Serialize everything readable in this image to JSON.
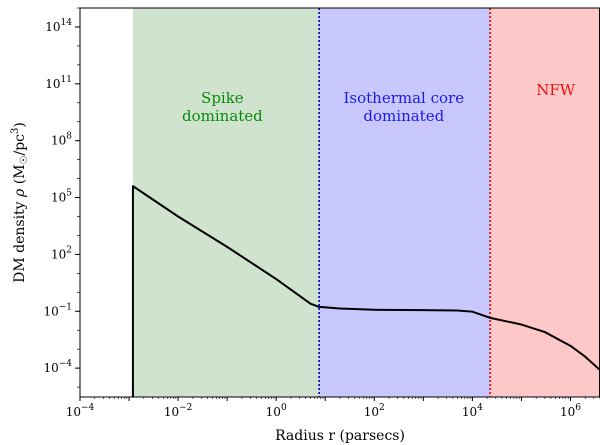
{
  "chart_data": {
    "type": "line",
    "xscale": "log",
    "yscale": "log",
    "xlim": [
      0.0001,
      4000000
    ],
    "ylim": [
      3e-06,
      1000000000000000
    ],
    "xlabel": "Radius r (parsecs)",
    "ylabel_prefix": "DM density ",
    "ylabel_rho": "ρ",
    "ylabel_units": "(M",
    "ylabel_sun": "☉",
    "ylabel_units_end": "/pc",
    "ylabel_exp": "3",
    "ylabel_close": ")",
    "xticks": [
      {
        "value": 0.0001,
        "base": "10",
        "exp": "−4"
      },
      {
        "value": 0.01,
        "base": "10",
        "exp": "−2"
      },
      {
        "value": 1,
        "base": "10",
        "exp": "0"
      },
      {
        "value": 100,
        "base": "10",
        "exp": "2"
      },
      {
        "value": 10000,
        "base": "10",
        "exp": "4"
      },
      {
        "value": 1000000,
        "base": "10",
        "exp": "6"
      }
    ],
    "yticks": [
      {
        "value": 0.0001,
        "base": "10",
        "exp": "−4"
      },
      {
        "value": 0.1,
        "base": "10",
        "exp": "−1"
      },
      {
        "value": 100,
        "base": "10",
        "exp": "2"
      },
      {
        "value": 100000,
        "base": "10",
        "exp": "5"
      },
      {
        "value": 100000000,
        "base": "10",
        "exp": "8"
      },
      {
        "value": 100000000000,
        "base": "10",
        "exp": "11"
      },
      {
        "value": 100000000000000,
        "base": "10",
        "exp": "14"
      }
    ],
    "regions": [
      {
        "x0": 0.0012,
        "x1": 7.5,
        "color": "#cfe3cf",
        "label": [
          "Spike",
          "dominated"
        ],
        "label_color": "#0a8a0a",
        "label_x": 0.08,
        "label_y": 10000000000
      },
      {
        "x0": 7.5,
        "x1": 23000,
        "color": "#c8c8ff",
        "label": [
          "Isothermal core",
          "dominated"
        ],
        "label_color": "#1a1aee",
        "label_x": 400,
        "label_y": 10000000000
      },
      {
        "x0": 23000,
        "x1": 4000000,
        "color": "#ffc8c8",
        "label": [
          "NFW"
        ],
        "label_color": "#ee1111",
        "label_x": 500000,
        "label_y": 25000000000
      }
    ],
    "boundaries": [
      {
        "x": 7.5,
        "color": "#0000cc"
      },
      {
        "x": 23000,
        "color": "#dd0000"
      }
    ],
    "series": [
      {
        "color": "#000000",
        "points": [
          [
            0.0012,
            3e-06
          ],
          [
            0.0012,
            400000
          ],
          [
            0.01,
            10000
          ],
          [
            0.1,
            250
          ],
          [
            1,
            5
          ],
          [
            5,
            0.25
          ],
          [
            7.5,
            0.17
          ],
          [
            20,
            0.14
          ],
          [
            100,
            0.12
          ],
          [
            1000,
            0.115
          ],
          [
            5000,
            0.11
          ],
          [
            10000,
            0.095
          ],
          [
            23000,
            0.045
          ],
          [
            100000,
            0.02
          ],
          [
            300000,
            0.008
          ],
          [
            1000000,
            0.0015
          ],
          [
            2000000,
            0.0004
          ],
          [
            4000000,
            8e-05
          ]
        ]
      }
    ]
  }
}
